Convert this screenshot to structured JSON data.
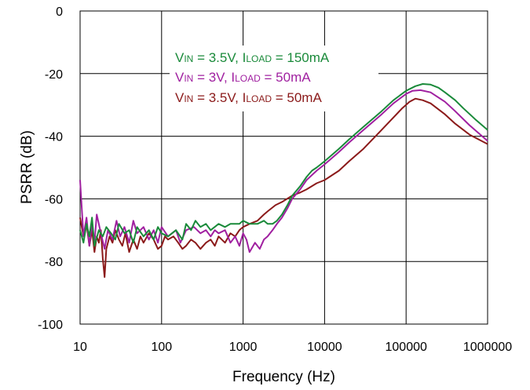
{
  "chart_data": {
    "type": "line",
    "title": "",
    "xlabel": "Frequency (Hz)",
    "ylabel": "PSRR (dB)",
    "xscale": "log",
    "xlim": [
      10,
      1000000
    ],
    "ylim": [
      -100,
      0
    ],
    "xticks": [
      "10",
      "100",
      "1000",
      "10000",
      "100000",
      "1000000"
    ],
    "yticks": [
      "0",
      "-20",
      "-40",
      "-60",
      "-80",
      "-100"
    ],
    "grid": true,
    "legend": {
      "placement": "top-center",
      "entries": [
        {
          "v_label": "V",
          "v_sub": "IN",
          "mid": " = 3.5V, I",
          "i_sub": "LOAD",
          "tail": " = 150mA",
          "color": "#1a8a3a"
        },
        {
          "v_label": "V",
          "v_sub": "IN",
          "mid": " = 3V, I",
          "i_sub": "LOAD",
          "tail": " = 50mA",
          "color": "#a020a0"
        },
        {
          "v_label": "V",
          "v_sub": "IN",
          "mid": " = 3.5V, I",
          "i_sub": "LOAD",
          "tail": " = 50mA",
          "color": "#8b1a1a"
        }
      ]
    },
    "series": [
      {
        "name": "VIN = 3.5V, ILOAD = 150mA",
        "color": "#1a8a3a",
        "x": [
          10,
          11,
          12,
          13,
          14,
          15,
          17,
          19,
          21,
          24,
          27,
          30,
          35,
          40,
          45,
          50,
          60,
          70,
          80,
          90,
          100,
          120,
          150,
          180,
          200,
          230,
          260,
          300,
          350,
          400,
          500,
          600,
          700,
          800,
          900,
          1000,
          1200,
          1500,
          1800,
          2000,
          2300,
          2600,
          3000,
          3500,
          4000,
          5000,
          6000,
          7000,
          8000,
          10000,
          15000,
          20000,
          30000,
          50000,
          70000,
          100000,
          130000,
          160000,
          200000,
          250000,
          300000,
          400000,
          500000,
          700000,
          1000000
        ],
        "y": [
          -70,
          -74,
          -68,
          -72,
          -66,
          -75,
          -70,
          -72,
          -69,
          -71,
          -73,
          -68,
          -71,
          -70,
          -74,
          -69,
          -72,
          -70,
          -73,
          -69,
          -71,
          -72,
          -70,
          -73,
          -68,
          -70,
          -67,
          -69,
          -68,
          -70,
          -68,
          -69,
          -68,
          -68,
          -68,
          -67,
          -68,
          -68,
          -67,
          -68,
          -68,
          -67,
          -65,
          -62,
          -59,
          -56,
          -53,
          -51,
          -50,
          -48,
          -44,
          -41,
          -37,
          -32,
          -28.5,
          -25.5,
          -24.0,
          -23.3,
          -23.5,
          -24.5,
          -26,
          -28.5,
          -31,
          -34.5,
          -38
        ]
      },
      {
        "name": "VIN = 3V, ILOAD = 50mA",
        "color": "#a020a0",
        "x": [
          10,
          11,
          12,
          13,
          14,
          15,
          16,
          18,
          20,
          22,
          25,
          28,
          31,
          35,
          40,
          45,
          50,
          60,
          70,
          80,
          90,
          100,
          120,
          150,
          170,
          200,
          250,
          300,
          350,
          400,
          450,
          500,
          600,
          700,
          800,
          900,
          1000,
          1100,
          1200,
          1400,
          1600,
          1800,
          2000,
          2300,
          2600,
          3000,
          3500,
          4000,
          5000,
          6000,
          8000,
          10000,
          15000,
          20000,
          30000,
          50000,
          70000,
          100000,
          120000,
          150000,
          200000,
          300000,
          400000,
          600000,
          1000000
        ],
        "y": [
          -54,
          -72,
          -66,
          -75,
          -68,
          -74,
          -65,
          -71,
          -76,
          -70,
          -73,
          -67,
          -72,
          -69,
          -74,
          -67,
          -71,
          -69,
          -73,
          -70,
          -74,
          -69,
          -72,
          -70,
          -74,
          -70,
          -69,
          -71,
          -70,
          -72,
          -70,
          -71,
          -70,
          -74,
          -72,
          -75,
          -71,
          -73,
          -77,
          -74,
          -76,
          -73,
          -72,
          -70,
          -68,
          -66,
          -63,
          -60,
          -57,
          -54,
          -51,
          -49,
          -45,
          -42,
          -38,
          -33,
          -29.5,
          -26.5,
          -25.5,
          -25.3,
          -26,
          -29,
          -32,
          -36.5,
          -41.5
        ]
      },
      {
        "name": "VIN = 3.5V, ILOAD = 50mA",
        "color": "#8b1a1a",
        "x": [
          10,
          11,
          12,
          13,
          14,
          15,
          16,
          17,
          18,
          19,
          20,
          21,
          23,
          25,
          27,
          30,
          33,
          36,
          40,
          45,
          50,
          55,
          60,
          70,
          80,
          90,
          100,
          110,
          120,
          140,
          160,
          180,
          200,
          230,
          260,
          300,
          350,
          400,
          450,
          500,
          600,
          700,
          800,
          900,
          1000,
          1200,
          1500,
          1800,
          2000,
          2500,
          3000,
          4000,
          5000,
          6000,
          8000,
          10000,
          15000,
          20000,
          30000,
          50000,
          70000,
          90000,
          110000,
          130000,
          160000,
          200000,
          300000,
          400000,
          600000,
          1000000
        ],
        "y": [
          -66,
          -72,
          -68,
          -75,
          -70,
          -77,
          -72,
          -74,
          -70,
          -79,
          -85,
          -76,
          -72,
          -74,
          -70,
          -73,
          -75,
          -71,
          -77,
          -73,
          -76,
          -72,
          -74,
          -71,
          -73,
          -76,
          -75,
          -72,
          -73,
          -72,
          -74,
          -76,
          -75,
          -73,
          -74,
          -76,
          -74,
          -73,
          -75,
          -72,
          -74,
          -71,
          -72,
          -70,
          -69,
          -68,
          -67,
          -65,
          -64,
          -62,
          -61,
          -59,
          -58,
          -57,
          -55,
          -54,
          -51,
          -48,
          -44,
          -38,
          -34,
          -31,
          -29,
          -28,
          -28.5,
          -29.5,
          -33,
          -36,
          -39.5,
          -42.5
        ]
      }
    ]
  }
}
